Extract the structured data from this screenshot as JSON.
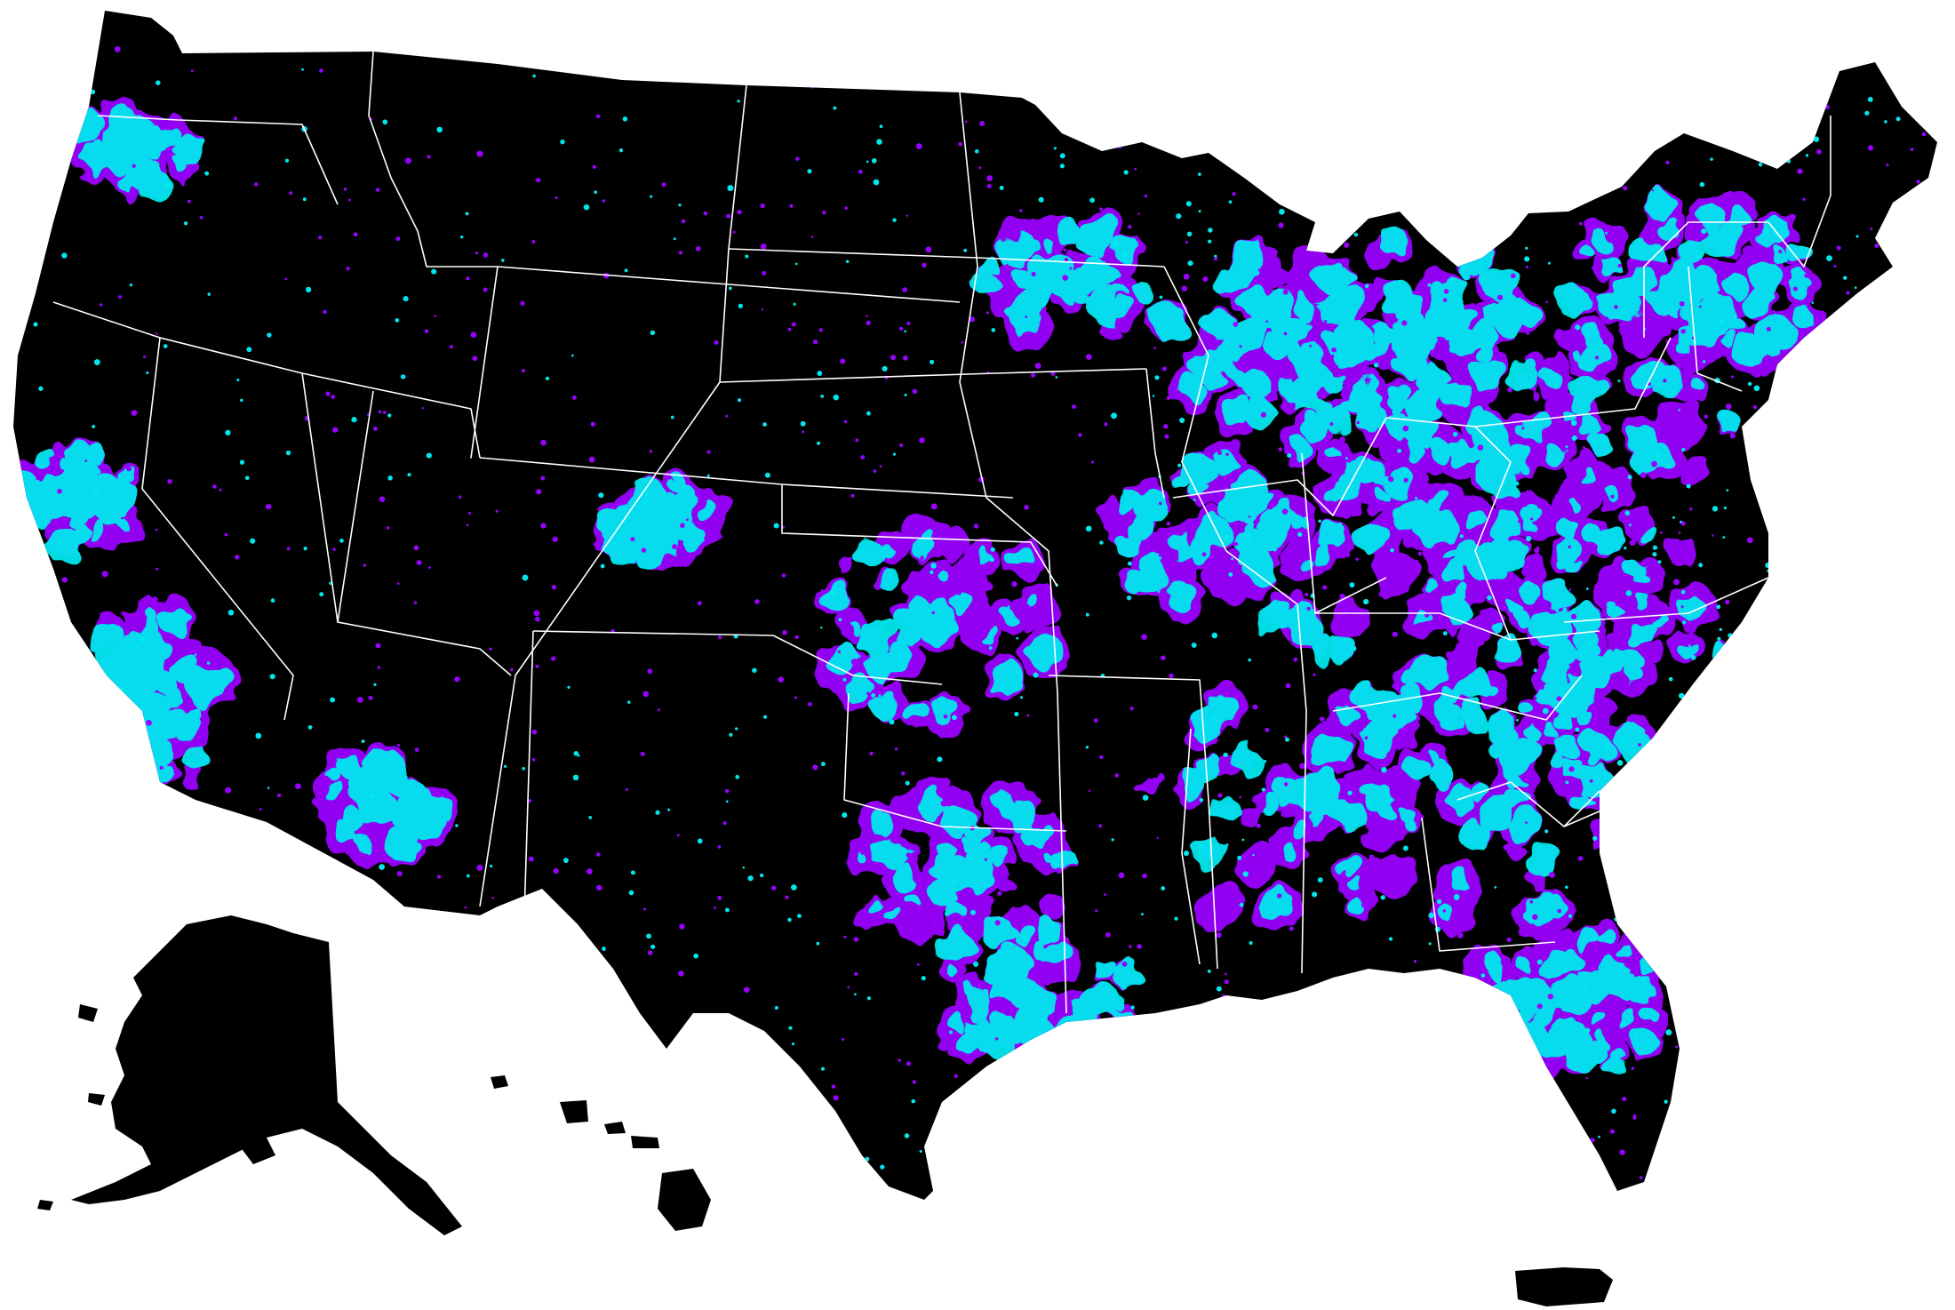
{
  "map": {
    "background": "#ffffff",
    "land_color": "#000000",
    "border_color": "#ffffff",
    "legend": [],
    "categories": [
      {
        "key": "a",
        "color": "#00e8ee"
      },
      {
        "key": "b",
        "color": "#9a00ff"
      }
    ],
    "regions": [
      "contiguous-united-states",
      "alaska",
      "hawaii",
      "puerto-rico"
    ]
  }
}
